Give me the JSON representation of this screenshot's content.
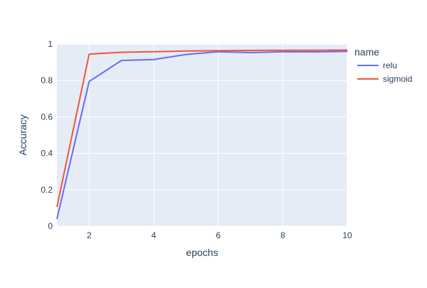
{
  "chart_data": {
    "type": "line",
    "xlabel": "epochs",
    "ylabel": "Accuracy",
    "xlim": [
      1,
      10
    ],
    "ylim": [
      0,
      1
    ],
    "x_ticks": [
      2,
      4,
      6,
      8,
      10
    ],
    "y_ticks": [
      0,
      0.2,
      0.4,
      0.6,
      0.8,
      1
    ],
    "y_tick_labels": [
      "0",
      "0.2",
      "0.4",
      "0.6",
      "0.8",
      "1"
    ],
    "x_tick_labels": [
      "2",
      "4",
      "6",
      "8",
      "10"
    ],
    "grid": true,
    "legend": {
      "title": "name",
      "placement": "right"
    },
    "x": [
      1,
      2,
      3,
      4,
      5,
      6,
      7,
      8,
      9,
      10
    ],
    "series": [
      {
        "name": "relu",
        "color": "#636efa",
        "values": [
          0.04,
          0.795,
          0.91,
          0.915,
          0.943,
          0.958,
          0.953,
          0.958,
          0.957,
          0.96
        ]
      },
      {
        "name": "sigmoid",
        "color": "#ef553b",
        "values": [
          0.105,
          0.945,
          0.955,
          0.958,
          0.962,
          0.964,
          0.965,
          0.966,
          0.966,
          0.967
        ]
      }
    ],
    "plot_bg_color": "#e5ecf6",
    "grid_color": "#ffffff",
    "text_color": "#2a3f5f"
  }
}
